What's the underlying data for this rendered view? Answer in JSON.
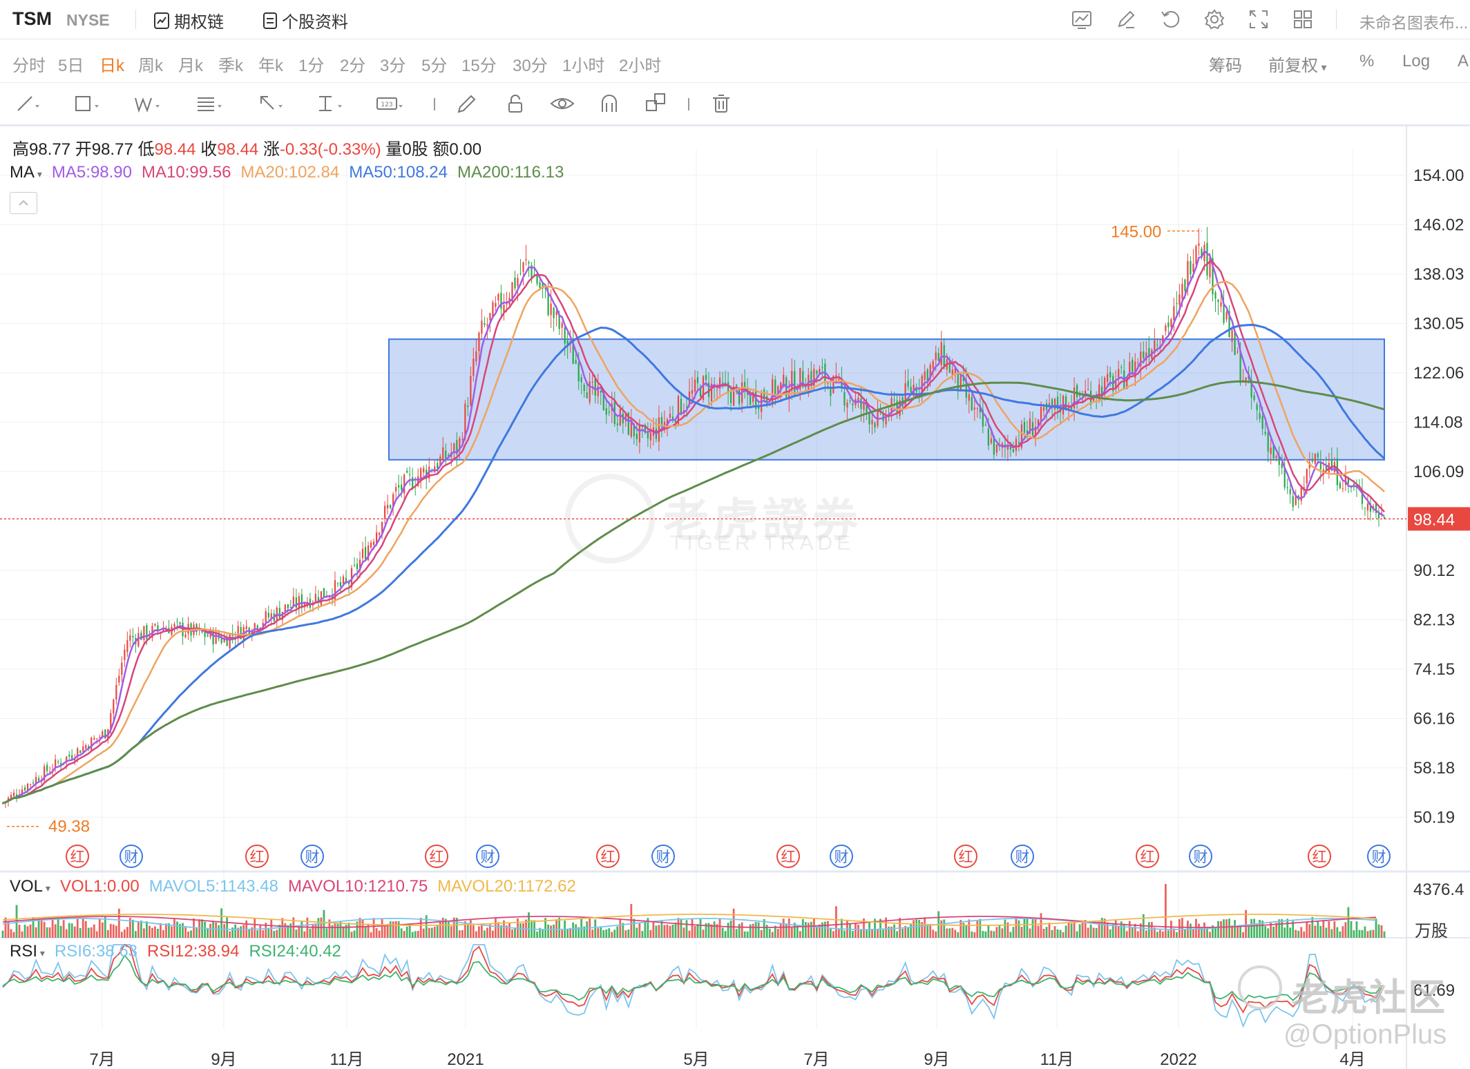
{
  "header": {
    "symbol": "TSM",
    "exchange": "NYSE",
    "options_chain": "期权链",
    "profile": "个股资料",
    "untitled_layout": "未命名图表布..."
  },
  "periods": [
    "分时",
    "5日",
    "日k",
    "周k",
    "月k",
    "季k",
    "年k",
    "1分",
    "2分",
    "3分",
    "5分",
    "15分",
    "30分",
    "1小时",
    "2小时"
  ],
  "active_period": "日k",
  "right_options": [
    "筹码",
    "前复权",
    "%",
    "Log",
    "A"
  ],
  "quote": {
    "high_label": "高",
    "high": "98.77",
    "open_label": "开",
    "open": "98.77",
    "low_label": "低",
    "low": "98.44",
    "close_label": "收",
    "close": "98.44",
    "change_label": "涨",
    "change": "-0.33(-0.33%)",
    "volume_label": "量",
    "volume": "0股",
    "amount_label": "额",
    "amount": "0.00"
  },
  "ma_legend": {
    "label": "MA",
    "items": [
      {
        "text": "MA5:98.90",
        "color": "#a05ce6"
      },
      {
        "text": "MA10:99.56",
        "color": "#d9457a"
      },
      {
        "text": "MA20:102.84",
        "color": "#f0a35e"
      },
      {
        "text": "MA50:108.24",
        "color": "#3f78e0"
      },
      {
        "text": "MA200:116.13",
        "color": "#5e8c4a"
      }
    ]
  },
  "vol_legend": {
    "label": "VOL",
    "items": [
      {
        "text": "VOL1:0.00",
        "color": "#e8483f"
      },
      {
        "text": "MAVOL5:1143.48",
        "color": "#7cc4ee"
      },
      {
        "text": "MAVOL10:1210.75",
        "color": "#d9457a"
      },
      {
        "text": "MAVOL20:1172.62",
        "color": "#f0b84a"
      }
    ]
  },
  "rsi_legend": {
    "label": "RSI",
    "items": [
      {
        "text": "RSI6:38.63",
        "color": "#7cc4ee"
      },
      {
        "text": "RSI12:38.94",
        "color": "#e8483f"
      },
      {
        "text": "RSI24:40.42",
        "color": "#3cb371"
      }
    ]
  },
  "watermarks": {
    "chart_cn": "老虎證券",
    "chart_en": "TIGER TRADE",
    "community": "老虎社区",
    "handle": "@OptionPlus"
  },
  "colors": {
    "up": "#e8483f",
    "down": "#27a84a",
    "accent": "#f07b23",
    "box": "#3f78e0"
  },
  "chart_data": {
    "type": "candlestick",
    "ylim": [
      46.0,
      158.0
    ],
    "y_ticks": [
      "154.00",
      "146.02",
      "138.03",
      "130.05",
      "122.06",
      "114.08",
      "106.09",
      "98.44",
      "90.12",
      "82.13",
      "74.15",
      "66.16",
      "58.18",
      "50.19"
    ],
    "x_ticks": [
      "7月",
      "9月",
      "11月",
      "2021",
      "5月",
      "7月",
      "9月",
      "11月",
      "2022",
      "4月"
    ],
    "last_price": "98.44",
    "annotations": [
      {
        "text": "145.00",
        "kind": "high"
      },
      {
        "text": "49.38",
        "kind": "low"
      }
    ],
    "consolidation_box": {
      "from": "2021-02",
      "to": "2022-04",
      "y_low": 108.0,
      "y_high": 127.5
    },
    "price_path": [
      [
        "2020-05",
        52.5
      ],
      [
        "2020-06",
        57.5
      ],
      [
        "2020-07",
        64
      ],
      [
        "2020-07",
        79
      ],
      [
        "2020-08",
        81
      ],
      [
        "2020-09",
        79
      ],
      [
        "2020-10",
        84
      ],
      [
        "2020-11",
        88
      ],
      [
        "2020-12",
        103
      ],
      [
        "2021-01",
        110
      ],
      [
        "2021-01",
        128
      ],
      [
        "2021-02",
        140
      ],
      [
        "2021-03",
        119
      ],
      [
        "2021-04",
        111
      ],
      [
        "2021-05",
        120
      ],
      [
        "2021-06",
        118
      ],
      [
        "2021-07",
        122
      ],
      [
        "2021-08",
        114
      ],
      [
        "2021-09",
        125
      ],
      [
        "2021-10",
        109
      ],
      [
        "2021-11",
        117
      ],
      [
        "2021-12",
        121
      ],
      [
        "2022-01",
        132
      ],
      [
        "2022-01",
        145
      ],
      [
        "2022-02",
        123
      ],
      [
        "2022-03",
        100
      ],
      [
        "2022-03",
        109
      ],
      [
        "2022-04",
        98.44
      ]
    ],
    "series": [
      {
        "name": "MA5",
        "last": 98.9
      },
      {
        "name": "MA10",
        "last": 99.56
      },
      {
        "name": "MA20",
        "last": 102.84
      },
      {
        "name": "MA50",
        "last": 108.24
      },
      {
        "name": "MA200",
        "last": 116.13
      }
    ],
    "volume": {
      "max_label": "4376.4",
      "unit": "万股"
    },
    "rsi": {
      "tick": "61.69"
    },
    "event_markers": [
      {
        "label": "红",
        "kind": "dividend"
      },
      {
        "label": "财",
        "kind": "earnings"
      },
      {
        "label": "红",
        "kind": "dividend"
      },
      {
        "label": "财",
        "kind": "earnings"
      },
      {
        "label": "红",
        "kind": "dividend"
      },
      {
        "label": "财",
        "kind": "earnings"
      },
      {
        "label": "红",
        "kind": "dividend"
      },
      {
        "label": "财",
        "kind": "earnings"
      },
      {
        "label": "红",
        "kind": "dividend"
      },
      {
        "label": "财",
        "kind": "earnings"
      },
      {
        "label": "红",
        "kind": "dividend"
      },
      {
        "label": "财",
        "kind": "earnings"
      },
      {
        "label": "红",
        "kind": "dividend"
      },
      {
        "label": "财",
        "kind": "earnings"
      },
      {
        "label": "红",
        "kind": "dividend"
      },
      {
        "label": "财",
        "kind": "earnings"
      }
    ]
  }
}
